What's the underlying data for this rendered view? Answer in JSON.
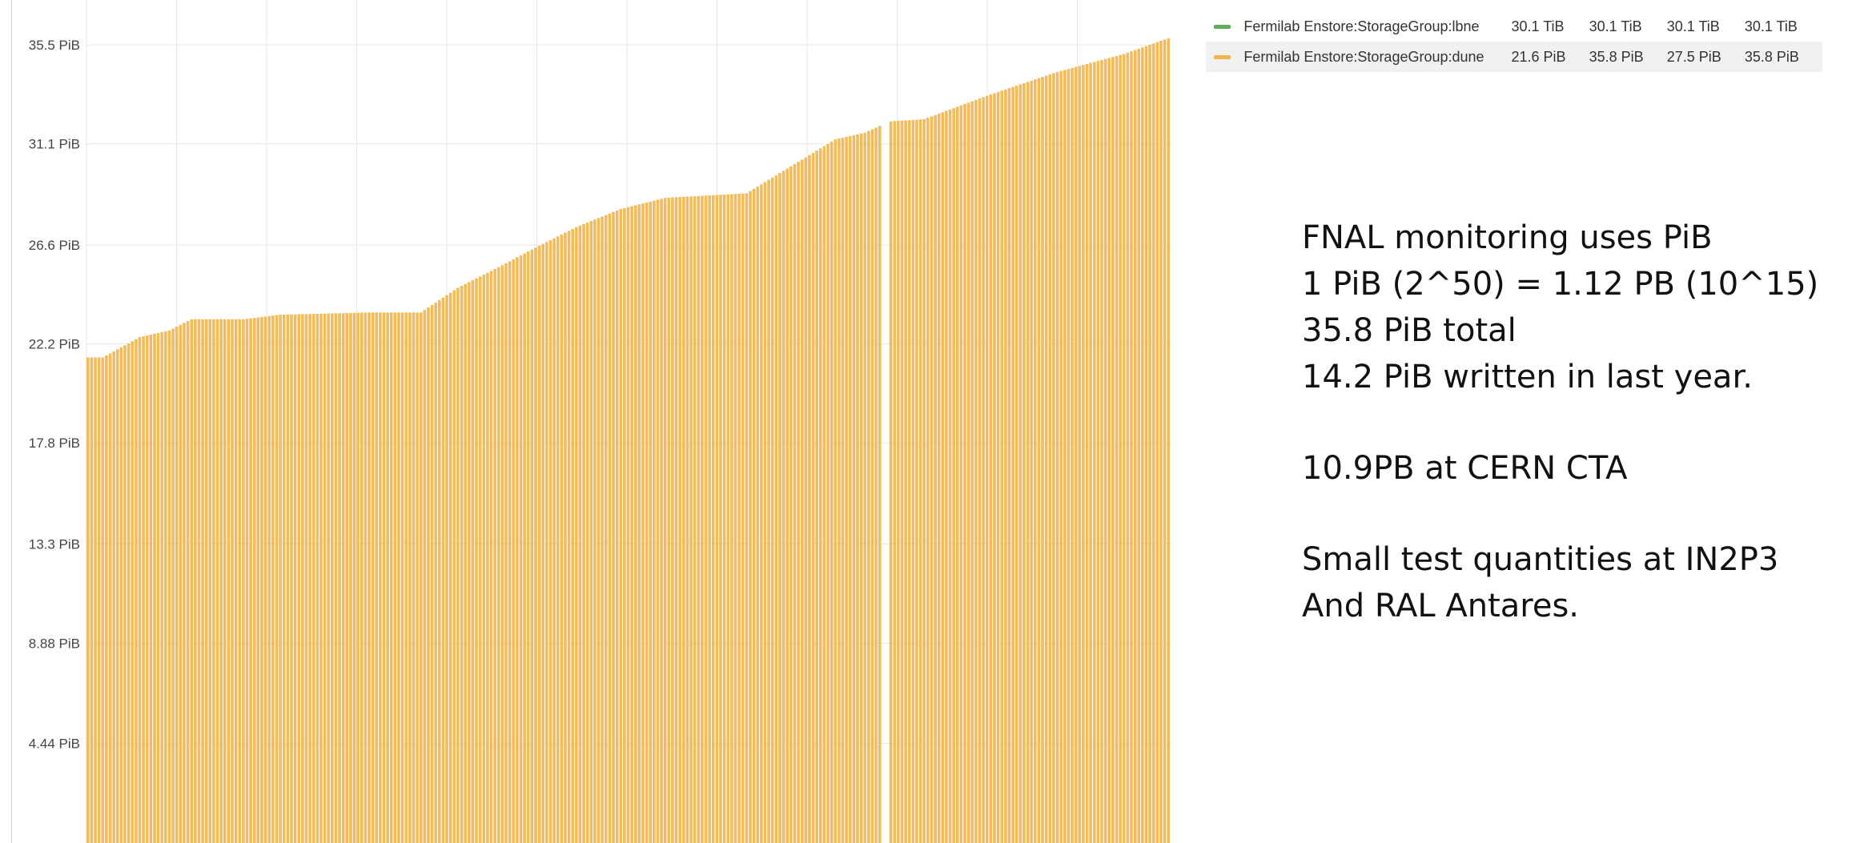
{
  "chart_data": {
    "type": "bar",
    "ylim": [
      0,
      37.5
    ],
    "y_ticks": [
      {
        "value": 4.44,
        "label": "4.44 PiB"
      },
      {
        "value": 8.88,
        "label": "8.88 PiB"
      },
      {
        "value": 13.3,
        "label": "13.3 PiB"
      },
      {
        "value": 17.8,
        "label": "17.8 PiB"
      },
      {
        "value": 22.2,
        "label": "22.2 PiB"
      },
      {
        "value": 26.6,
        "label": "26.6 PiB"
      },
      {
        "value": 31.1,
        "label": "31.1 PiB"
      },
      {
        "value": 35.5,
        "label": "35.5 PiB"
      }
    ],
    "grid": true,
    "legend_placement": "top-right",
    "series": [
      {
        "name": "Fermilab Enstore:StorageGroup:dune",
        "color": "#f0bc5e",
        "breakpoints": [
          [
            0,
            21.6
          ],
          [
            4,
            21.6
          ],
          [
            14,
            22.5
          ],
          [
            22,
            22.8
          ],
          [
            28,
            23.3
          ],
          [
            42,
            23.3
          ],
          [
            52,
            23.5
          ],
          [
            76,
            23.6
          ],
          [
            90,
            23.6
          ],
          [
            100,
            24.7
          ],
          [
            112,
            25.7
          ],
          [
            120,
            26.4
          ],
          [
            132,
            27.4
          ],
          [
            144,
            28.2
          ],
          [
            156,
            28.7
          ],
          [
            178,
            28.9
          ],
          [
            192,
            30.3
          ],
          [
            202,
            31.3
          ],
          [
            210,
            31.6
          ],
          [
            214,
            31.9
          ],
          [
            215,
            null
          ],
          [
            217,
            32.1
          ],
          [
            226,
            32.2
          ],
          [
            244,
            33.3
          ],
          [
            262,
            34.3
          ],
          [
            280,
            35.1
          ],
          [
            292,
            35.8
          ]
        ],
        "n_bars": 293
      }
    ]
  },
  "legend": {
    "rows": [
      {
        "name": "Fermilab Enstore:StorageGroup:lbne",
        "color": "#5cad55",
        "values": [
          "30.1 TiB",
          "30.1 TiB",
          "30.1 TiB",
          "30.1 TiB"
        ]
      },
      {
        "name": "Fermilab Enstore:StorageGroup:dune",
        "color": "#f0b44e",
        "values": [
          "21.6 PiB",
          "35.8 PiB",
          "27.5 PiB",
          "35.8 PiB"
        ]
      }
    ]
  },
  "notes": {
    "line1": "FNAL monitoring uses PiB",
    "line2": "1 PiB (2^50) = 1.12 PB (10^15)",
    "line3": "35.8 PiB total",
    "line4": "14.2 PiB written in last year.",
    "line5": "10.9PB at CERN CTA",
    "line6": "Small test quantities at IN2P3",
    "line7": "And RAL Antares."
  }
}
